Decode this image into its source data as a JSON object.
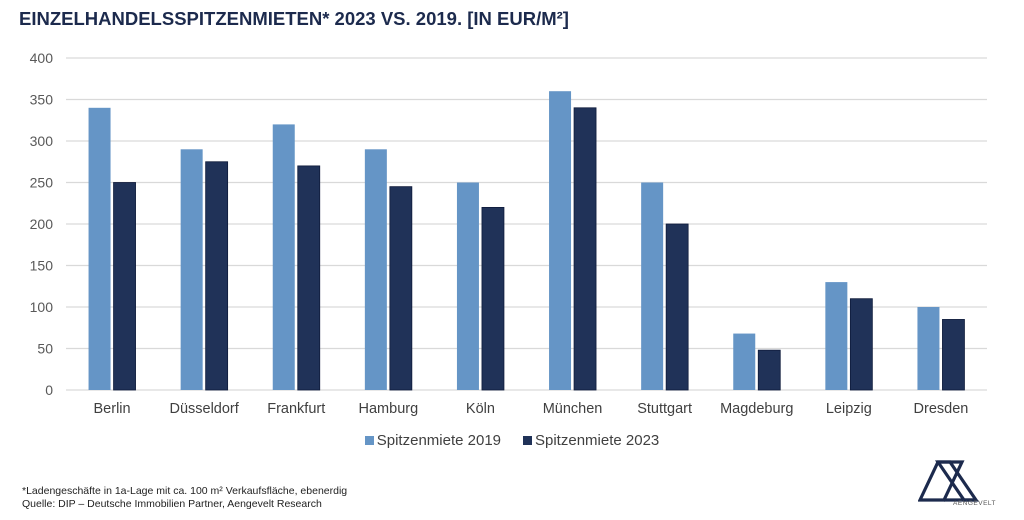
{
  "title": "EINZELHANDELSSPITZENMIETEN* 2023 VS. 2019. [IN EUR/M²]",
  "footnote": {
    "line1": "*Ladengeschäfte in 1a-Lage mit ca. 100 m² Verkaufsfläche, ebenerdig",
    "line2": "Quelle: DIP – Deutsche Immobilien Partner, Aengevelt Research"
  },
  "logo": {
    "icon": "aengevelt-logo-icon",
    "text": "AENGEVELT"
  },
  "chart_data": {
    "type": "bar",
    "title": "EINZELHANDELSSPITZENMIETEN* 2023 VS. 2019. [IN EUR/M²]",
    "xlabel": "",
    "ylabel": "",
    "ylim": [
      0,
      400
    ],
    "yticks": [
      0,
      50,
      100,
      150,
      200,
      250,
      300,
      350,
      400
    ],
    "grid": true,
    "legend_position": "bottom",
    "categories": [
      "Berlin",
      "Düsseldorf",
      "Frankfurt",
      "Hamburg",
      "Köln",
      "München",
      "Stuttgart",
      "Magdeburg",
      "Leipzig",
      "Dresden"
    ],
    "series": [
      {
        "name": "Spitzenmiete 2019",
        "color": "#6595c6",
        "values": [
          340,
          290,
          320,
          290,
          250,
          360,
          250,
          68,
          130,
          100
        ]
      },
      {
        "name": "Spitzenmiete 2023",
        "color": "#203258",
        "values": [
          250,
          275,
          270,
          245,
          220,
          340,
          200,
          48,
          110,
          85
        ]
      }
    ]
  }
}
